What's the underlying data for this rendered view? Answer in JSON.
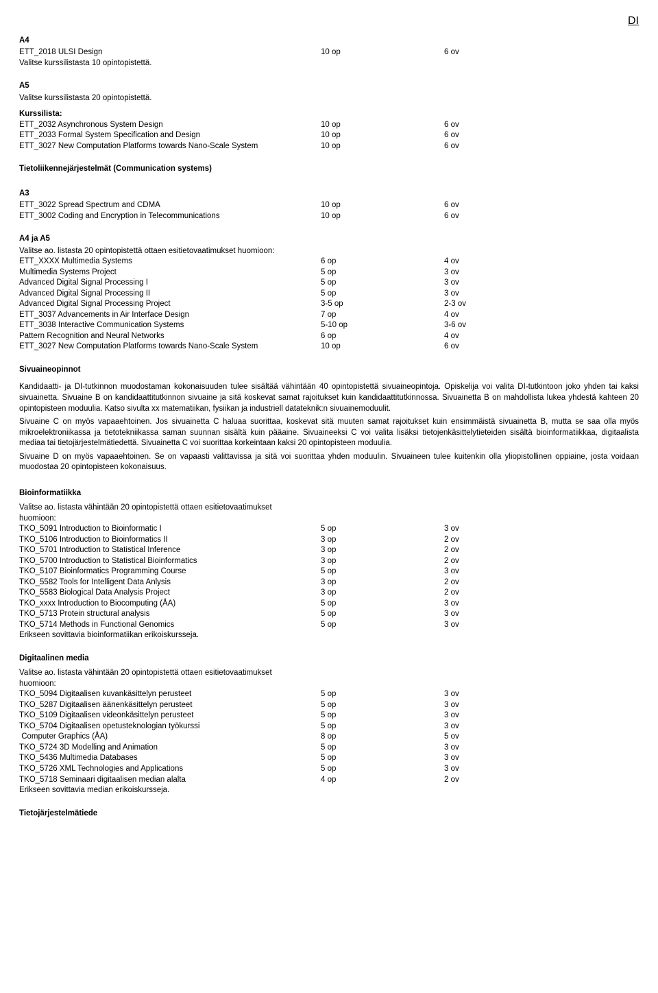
{
  "header_right": "DI",
  "a4_title": "A4",
  "a4_row": {
    "name": "ETT_2018 ULSI Design",
    "op": "10 op",
    "ov": "6 ov"
  },
  "a4_note": "Valitse kurssilistasta 10 opintopistettä.",
  "a5_title": "A5",
  "a5_note": "Valitse kurssilistasta 20 opintopistettä.",
  "kurssilista_title": "Kurssilista:",
  "kurssilista": [
    {
      "name": "ETT_2032 Asynchronous System Design",
      "op": "10 op",
      "ov": "6 ov"
    },
    {
      "name": "ETT_2033 Formal System Specification and Design",
      "op": "10 op",
      "ov": "6 ov"
    },
    {
      "name": "ETT_3027 New Computation Platforms towards Nano-Scale System",
      "op": "10 op",
      "ov": "6 ov"
    }
  ],
  "tieto_title": "Tietoliikennejärjestelmät (Communication systems)",
  "a3_title": "A3",
  "a3_rows": [
    {
      "name": "ETT_3022 Spread Spectrum and CDMA",
      "op": "10 op",
      "ov": "6 ov"
    },
    {
      "name": "ETT_3002 Coding and Encryption in Telecommunications",
      "op": "10 op",
      "ov": "6 ov"
    }
  ],
  "a4a5_title": "A4 ja A5",
  "a4a5_note": "Valitse ao. listasta 20 opintopistettä ottaen esitietovaatimukset huomioon:",
  "a4a5_rows": [
    {
      "name": "ETT_XXXX Multimedia Systems",
      "op": "6 op",
      "ov": "4 ov"
    },
    {
      "name": "Multimedia Systems Project",
      "op": "5 op",
      "ov": "3 ov"
    },
    {
      "name": "Advanced Digital Signal Processing I",
      "op": "5 op",
      "ov": "3 ov"
    },
    {
      "name": "Advanced Digital Signal Processing II",
      "op": "5 op",
      "ov": "3 ov"
    },
    {
      "name": "Advanced Digital Signal Processing Project",
      "op": "3-5 op",
      "ov": "2-3 ov"
    },
    {
      "name": "ETT_3037 Advancements in Air Interface Design",
      "op": "7 op",
      "ov": "4 ov"
    },
    {
      "name": "ETT_3038 Interactive Communication Systems",
      "op": "5-10 op",
      "ov": "3-6 ov"
    },
    {
      "name": "Pattern Recognition and Neural Networks",
      "op": "6 op",
      "ov": "4 ov"
    },
    {
      "name": "ETT_3027 New Computation Platforms towards Nano-Scale System",
      "op": "10 op",
      "ov": "6 ov"
    }
  ],
  "sivuaine_title": "Sivuaineopinnot",
  "sivuaine_p1": "Kandidaatti- ja DI-tutkinnon muodostaman kokonaisuuden tulee sisältää vähintään 40 opintopistettä sivuaineopintoja. Opiskelija voi valita DI-tutkintoon joko yhden tai kaksi sivuainetta. Sivuaine B on kandidaattitutkinnon sivuaine ja sitä koskevat samat rajoitukset kuin kandidaattitutkinnossa. Sivuainetta B on mahdollista lukea yhdestä kahteen 20 opintopisteen moduulia. Katso sivulta xx matematiikan, fysiikan ja industriell datateknik:n sivuainemoduulit.",
  "sivuaine_p2": "Sivuaine C on myös vapaaehtoinen. Jos sivuainetta C haluaa suorittaa, koskevat sitä muuten samat rajoitukset kuin ensimmäistä sivuainetta B, mutta se saa olla myös mikroelektroniikassa ja tietotekniikassa saman suunnan sisältä kuin pääaine. Sivuaineeksi C voi valita lisäksi tietojenkäsittelytieteiden sisältä bioinformatiikkaa, digitaalista mediaa tai tietojärjestelmätiedettä. Sivuainetta C voi suorittaa korkeintaan kaksi 20 opintopisteen moduulia.",
  "sivuaine_p3": "Sivuaine D on myös vapaaehtoinen. Se on vapaasti valittavissa ja sitä voi suorittaa yhden moduulin. Sivuaineen tulee kuitenkin olla yliopistollinen oppiaine, josta voidaan muodostaa 20 opintopisteen kokonaisuus.",
  "bioinf_title": "Bioinformatiikka",
  "bioinf_note1": "Valitse ao. listasta vähintään 20 opintopistettä ottaen esitietovaatimukset",
  "bioinf_note2": "huomioon:",
  "bioinf_rows": [
    {
      "name": "TKO_5091 Introduction to Bioinformatic I",
      "op": "5 op",
      "ov": "3 ov"
    },
    {
      "name": "TKO_5106 Introduction to Bioinformatics II",
      "op": "3 op",
      "ov": "2 ov"
    },
    {
      "name": "TKO_5701 Introduction to Statistical Inference",
      "op": "3 op",
      "ov": "2 ov"
    },
    {
      "name": "TKO_5700 Introduction to Statistical Bioinformatics",
      "op": "3 op",
      "ov": "2 ov"
    },
    {
      "name": "TKO_5107 Bioinformatics Programming Course",
      "op": "5 op",
      "ov": "3 ov"
    },
    {
      "name": "TKO_5582 Tools for Intelligent Data Anlysis",
      "op": "3 op",
      "ov": "2 ov"
    },
    {
      "name": "TKO_5583 Biological Data Analysis Project",
      "op": "3 op",
      "ov": "2 ov"
    },
    {
      "name": "TKO_xxxx Introduction to Biocomputing (ÅA)",
      "op": "5 op",
      "ov": "3 ov"
    },
    {
      "name": "TKO_5713 Protein structural analysis",
      "op": "5 op",
      "ov": "3 ov"
    },
    {
      "name": "TKO_5714 Methods in Functional Genomics",
      "op": "5 op",
      "ov": "3 ov"
    }
  ],
  "bioinf_footer": "Erikseen sovittavia bioinformatiikan erikoiskursseja.",
  "digmedia_title": "Digitaalinen media",
  "digmedia_note1": "Valitse ao. listasta vähintään 20 opintopistettä ottaen esitietovaatimukset",
  "digmedia_note2": "huomioon:",
  "digmedia_rows": [
    {
      "name": "TKO_5094 Digitaalisen kuvankäsittelyn perusteet",
      "op": "5 op",
      "ov": "3 ov"
    },
    {
      "name": "TKO_5287 Digitaalisen äänenkäsittelyn perusteet",
      "op": "5 op",
      "ov": "3 ov"
    },
    {
      "name": "TKO_5109 Digitaalisen videonkäsittelyn perusteet",
      "op": "5 op",
      "ov": "3 ov"
    },
    {
      "name": "TKO_5704 Digitaalisen opetusteknologian työkurssi",
      "op": "5 op",
      "ov": "3 ov"
    },
    {
      "name": " Computer Graphics (ÅA)",
      "op": "8 op",
      "ov": "5 ov"
    },
    {
      "name": "TKO_5724 3D Modelling and Animation",
      "op": "5 op",
      "ov": "3 ov"
    },
    {
      "name": "TKO_5436 Multimedia Databases",
      "op": "5 op",
      "ov": "3 ov"
    },
    {
      "name": "TKO_5726 XML Technologies and Applications",
      "op": "5 op",
      "ov": "3 ov"
    },
    {
      "name": "TKO_5718 Seminaari digitaalisen median alalta",
      "op": "4 op",
      "ov": "2 ov"
    }
  ],
  "digmedia_footer": "Erikseen sovittavia median erikoiskursseja.",
  "tietoj_title": "Tietojärjestelmätiede"
}
